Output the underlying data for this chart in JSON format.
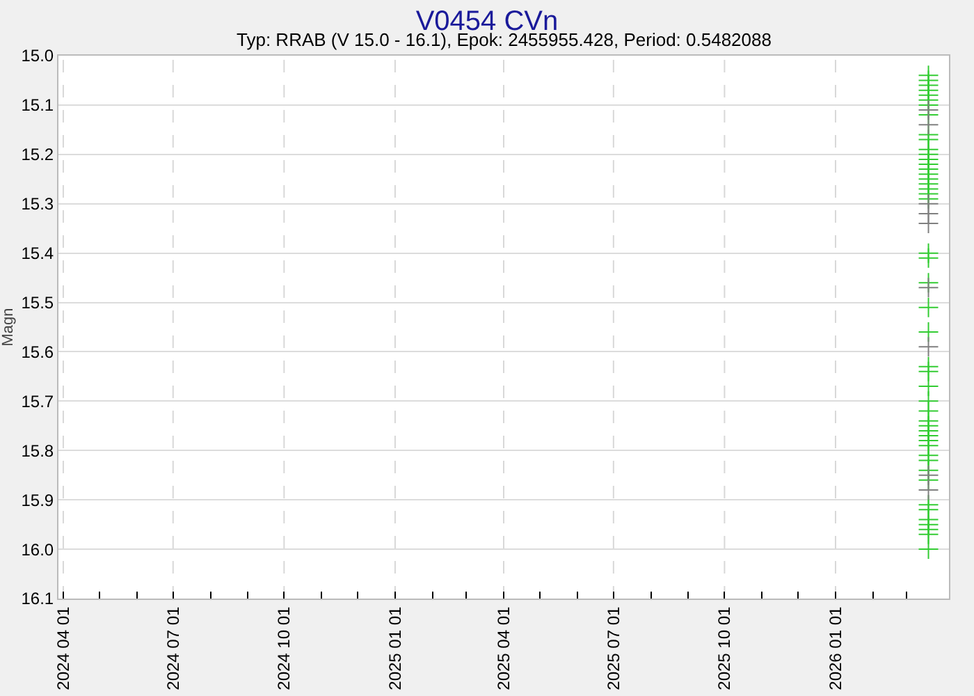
{
  "chart_data": {
    "type": "scatter",
    "title": "V0454 CVn",
    "subtitle": "Typ: RRAB (V 15.0 - 16.1), Epok: 2455955.428, Period: 0.5482088",
    "ylabel": "Magn",
    "marker": "cross",
    "grid": true,
    "xlim": [
      "2024-03-28",
      "2026-04-05"
    ],
    "xticks": [
      {
        "value": "2024-04-01",
        "label": "2024 04 01"
      },
      {
        "value": "2024-05-01",
        "label": null
      },
      {
        "value": "2024-06-01",
        "label": null
      },
      {
        "value": "2024-07-01",
        "label": "2024 07 01"
      },
      {
        "value": "2024-08-01",
        "label": null
      },
      {
        "value": "2024-09-01",
        "label": null
      },
      {
        "value": "2024-10-01",
        "label": "2024 10 01"
      },
      {
        "value": "2024-11-01",
        "label": null
      },
      {
        "value": "2024-12-01",
        "label": null
      },
      {
        "value": "2025-01-01",
        "label": "2025 01 01"
      },
      {
        "value": "2025-02-01",
        "label": null
      },
      {
        "value": "2025-03-01",
        "label": null
      },
      {
        "value": "2025-04-01",
        "label": "2025 04 01"
      },
      {
        "value": "2025-05-01",
        "label": null
      },
      {
        "value": "2025-06-01",
        "label": null
      },
      {
        "value": "2025-07-01",
        "label": "2025 07 01"
      },
      {
        "value": "2025-08-01",
        "label": null
      },
      {
        "value": "2025-09-01",
        "label": null
      },
      {
        "value": "2025-10-01",
        "label": "2025 10 01"
      },
      {
        "value": "2025-11-01",
        "label": null
      },
      {
        "value": "2025-12-01",
        "label": null
      },
      {
        "value": "2026-01-01",
        "label": "2026 01 01"
      },
      {
        "value": "2026-02-01",
        "label": null
      },
      {
        "value": "2026-03-01",
        "label": null
      }
    ],
    "ylim": [
      16.1,
      15.0
    ],
    "yticks": [
      {
        "value": 15.0,
        "label": "15.0"
      },
      15.1,
      15.2,
      15.3,
      15.4,
      15.5,
      15.6,
      15.7,
      15.8,
      15.9,
      {
        "value": 16.0,
        "label": "16.0"
      },
      16.1
    ],
    "series": [
      {
        "color": "#33cc33",
        "x": [
          "2026-03-19",
          "2026-03-19",
          "2026-03-19",
          "2026-03-19",
          "2026-03-19",
          "2026-03-19",
          "2026-03-19",
          "2026-03-19",
          "2026-03-19",
          "2026-03-19",
          "2026-03-19",
          "2026-03-19",
          "2026-03-19",
          "2026-03-19",
          "2026-03-19",
          "2026-03-19",
          "2026-03-19",
          "2026-03-19",
          "2026-03-19",
          "2026-03-19",
          "2026-03-19",
          "2026-03-19",
          "2026-03-19",
          "2026-03-19",
          "2026-03-19",
          "2026-03-19",
          "2026-03-19",
          "2026-03-19",
          "2026-03-19",
          "2026-03-19",
          "2026-03-19",
          "2026-03-19",
          "2026-03-19",
          "2026-03-19",
          "2026-03-19",
          "2026-03-19",
          "2026-03-19",
          "2026-03-19",
          "2026-03-19",
          "2026-03-19",
          "2026-03-19",
          "2026-03-19",
          "2026-03-19",
          "2026-03-19",
          "2026-03-19",
          "2026-03-19",
          "2026-03-19",
          "2026-03-19"
        ],
        "values": [
          15.04,
          15.05,
          15.06,
          15.07,
          15.08,
          15.1,
          15.12,
          15.16,
          15.17,
          15.19,
          15.2,
          15.21,
          15.23,
          15.24,
          15.25,
          15.26,
          15.27,
          15.28,
          15.29,
          15.4,
          15.41,
          15.46,
          15.51,
          15.56,
          15.63,
          15.64,
          15.67,
          15.7,
          15.72,
          15.74,
          15.75,
          15.76,
          15.77,
          15.78,
          15.79,
          15.81,
          15.82,
          15.84,
          15.86,
          15.91,
          15.92,
          15.94,
          15.95,
          15.96,
          15.97,
          16.0,
          15.09,
          15.22
        ]
      },
      {
        "color": "#808080",
        "x": [
          "2026-03-19",
          "2026-03-19",
          "2026-03-19",
          "2026-03-19",
          "2026-03-19",
          "2026-03-19",
          "2026-03-19",
          "2026-03-19",
          "2026-03-19"
        ],
        "values": [
          15.11,
          15.14,
          15.3,
          15.32,
          15.34,
          15.47,
          15.59,
          15.85,
          15.88
        ]
      }
    ]
  }
}
